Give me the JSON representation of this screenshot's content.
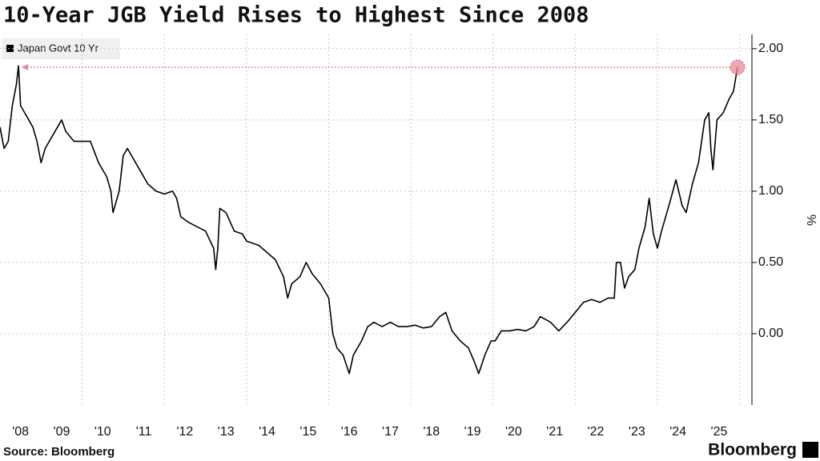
{
  "chart_data": {
    "type": "line",
    "title": "10-Year JGB Yield Rises to Highest Since 2008",
    "source": "Source: Bloomberg",
    "brand": "Bloomberg",
    "ylabel": "%",
    "series": [
      {
        "name": "Japan Govt 10 Yr",
        "color": "#000000",
        "x": [
          2008.0,
          2008.1,
          2008.2,
          2008.3,
          2008.4,
          2008.45,
          2008.5,
          2008.6,
          2008.7,
          2008.8,
          2008.9,
          2009.0,
          2009.1,
          2009.3,
          2009.5,
          2009.6,
          2009.8,
          2010.0,
          2010.2,
          2010.4,
          2010.6,
          2010.7,
          2010.75,
          2010.9,
          2011.0,
          2011.1,
          2011.2,
          2011.4,
          2011.6,
          2011.8,
          2012.0,
          2012.2,
          2012.3,
          2012.4,
          2012.6,
          2012.8,
          2013.0,
          2013.2,
          2013.25,
          2013.3,
          2013.35,
          2013.5,
          2013.7,
          2013.9,
          2014.0,
          2014.3,
          2014.5,
          2014.7,
          2014.9,
          2015.0,
          2015.1,
          2015.3,
          2015.45,
          2015.6,
          2015.8,
          2016.0,
          2016.1,
          2016.2,
          2016.35,
          2016.5,
          2016.6,
          2016.8,
          2016.95,
          2017.1,
          2017.3,
          2017.5,
          2017.7,
          2017.9,
          2018.1,
          2018.3,
          2018.5,
          2018.7,
          2018.85,
          2019.0,
          2019.2,
          2019.4,
          2019.55,
          2019.65,
          2019.8,
          2019.95,
          2020.05,
          2020.2,
          2020.4,
          2020.6,
          2020.8,
          2021.0,
          2021.15,
          2021.4,
          2021.6,
          2021.8,
          2022.0,
          2022.2,
          2022.4,
          2022.6,
          2022.8,
          2022.95,
          2023.0,
          2023.1,
          2023.2,
          2023.3,
          2023.45,
          2023.55,
          2023.7,
          2023.8,
          2023.9,
          2024.0,
          2024.1,
          2024.3,
          2024.45,
          2024.6,
          2024.7,
          2024.85,
          2025.0,
          2025.15,
          2025.25,
          2025.3,
          2025.35,
          2025.45,
          2025.6,
          2025.75,
          2025.85,
          2025.95
        ],
        "values": [
          1.45,
          1.3,
          1.35,
          1.6,
          1.75,
          1.88,
          1.6,
          1.55,
          1.5,
          1.45,
          1.35,
          1.2,
          1.3,
          1.4,
          1.5,
          1.42,
          1.35,
          1.35,
          1.35,
          1.2,
          1.1,
          1.0,
          0.85,
          1.0,
          1.25,
          1.3,
          1.25,
          1.15,
          1.05,
          1.0,
          0.98,
          1.0,
          0.95,
          0.82,
          0.78,
          0.75,
          0.72,
          0.6,
          0.45,
          0.6,
          0.88,
          0.85,
          0.72,
          0.7,
          0.65,
          0.62,
          0.57,
          0.52,
          0.4,
          0.25,
          0.35,
          0.4,
          0.5,
          0.42,
          0.35,
          0.25,
          0.0,
          -0.1,
          -0.15,
          -0.28,
          -0.15,
          -0.05,
          0.05,
          0.08,
          0.05,
          0.08,
          0.05,
          0.05,
          0.06,
          0.04,
          0.05,
          0.12,
          0.15,
          0.02,
          -0.05,
          -0.1,
          -0.2,
          -0.28,
          -0.15,
          -0.05,
          -0.05,
          0.02,
          0.02,
          0.03,
          0.02,
          0.05,
          0.12,
          0.08,
          0.02,
          0.08,
          0.15,
          0.22,
          0.24,
          0.22,
          0.25,
          0.25,
          0.5,
          0.5,
          0.32,
          0.4,
          0.45,
          0.6,
          0.75,
          0.95,
          0.7,
          0.6,
          0.72,
          0.92,
          1.08,
          0.9,
          0.85,
          1.05,
          1.2,
          1.5,
          1.55,
          1.3,
          1.15,
          1.5,
          1.55,
          1.65,
          1.7,
          1.87
        ]
      }
    ],
    "highlight_color": "#e8889a",
    "xlim": [
      2008.0,
      2026.3
    ],
    "xticks": [
      {
        "value": 2008.5,
        "label": "'08"
      },
      {
        "value": 2009.5,
        "label": "'09"
      },
      {
        "value": 2010.5,
        "label": "'10"
      },
      {
        "value": 2011.5,
        "label": "'11"
      },
      {
        "value": 2012.5,
        "label": "'12"
      },
      {
        "value": 2013.5,
        "label": "'13"
      },
      {
        "value": 2014.5,
        "label": "'14"
      },
      {
        "value": 2015.5,
        "label": "'15"
      },
      {
        "value": 2016.5,
        "label": "'16"
      },
      {
        "value": 2017.5,
        "label": "'17"
      },
      {
        "value": 2018.5,
        "label": "'18"
      },
      {
        "value": 2019.5,
        "label": "'19"
      },
      {
        "value": 2020.5,
        "label": "'20"
      },
      {
        "value": 2021.5,
        "label": "'21"
      },
      {
        "value": 2022.5,
        "label": "'22"
      },
      {
        "value": 2023.5,
        "label": "'23"
      },
      {
        "value": 2024.5,
        "label": "'24"
      },
      {
        "value": 2025.5,
        "label": "'25"
      }
    ],
    "x_grid_lines": [
      2010,
      2012,
      2014,
      2016,
      2018,
      2020,
      2022,
      2024,
      2026
    ],
    "ylim": [
      -0.5,
      2.1
    ],
    "yticks": [
      {
        "value": 0,
        "label": "0.00"
      },
      {
        "value": 0.5,
        "label": "0.50"
      },
      {
        "value": 1,
        "label": "1.00"
      },
      {
        "value": 1.5,
        "label": "1.50"
      },
      {
        "value": 2,
        "label": "2.00"
      }
    ],
    "grid": true
  }
}
